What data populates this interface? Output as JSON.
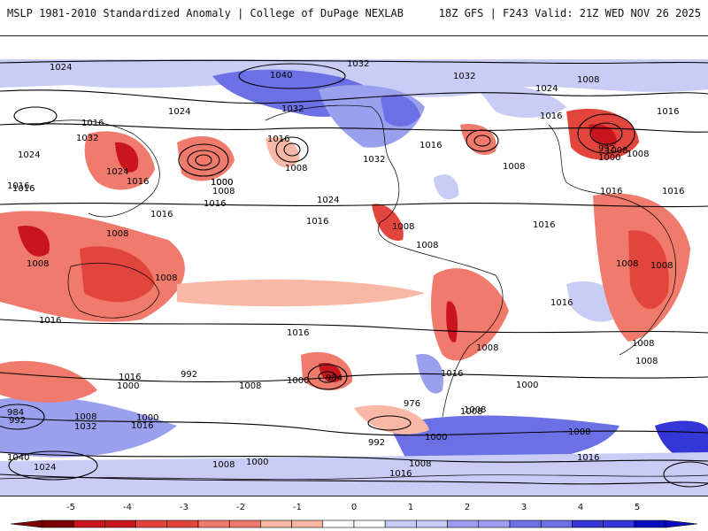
{
  "header": {
    "title": "MSLP 1981-2010 Standardized Anomaly | College of DuPage NEXLAB",
    "run_info": "18Z GFS | F243 Valid: 21Z WED NOV 26 2025"
  },
  "colors": {
    "ocean_bg": "#ffffff",
    "neg5": "#7d0000",
    "neg4": "#c8161c",
    "neg3": "#e2453c",
    "neg2": "#f07a6b",
    "neg1": "#f9b7a6",
    "pos1": "#c9cdf6",
    "pos2": "#9aa0ee",
    "pos3": "#6b70e4",
    "pos4": "#3436d8",
    "pos5": "#0a0ac0",
    "contour": "#000000",
    "coast": "#000000"
  },
  "map": {
    "isobar_labels": [
      "1024",
      "1040",
      "1032",
      "1032",
      "1024",
      "1008",
      "1016",
      "1016",
      "1032",
      "1024",
      "1024",
      "1024",
      "1032",
      "1016",
      "1016",
      "1016",
      "1000",
      "1008",
      "1016",
      "1008",
      "1000",
      "1008",
      "1032",
      "1008",
      "1016",
      "1016",
      "992",
      "1000",
      "1008",
      "1016",
      "1016",
      "1016",
      "1016",
      "1016",
      "1024",
      "1016",
      "1008",
      "1008",
      "1008",
      "1008",
      "1008",
      "1008",
      "1008",
      "1008",
      "1016",
      "1016",
      "1016",
      "1016",
      "1008",
      "1008",
      "1016",
      "992",
      "1000",
      "1008",
      "1000",
      "984",
      "976",
      "1000",
      "1008",
      "1008",
      "1016",
      "1008",
      "1008",
      "1000",
      "1016",
      "1032",
      "1040",
      "1024",
      "1008",
      "1000",
      "992",
      "1000",
      "1008",
      "1016",
      "984",
      "992"
    ]
  },
  "colorbar": {
    "ticks": [
      "-5",
      "-4",
      "-3",
      "-2",
      "-1",
      "0",
      "1",
      "2",
      "3",
      "4",
      "5"
    ]
  }
}
